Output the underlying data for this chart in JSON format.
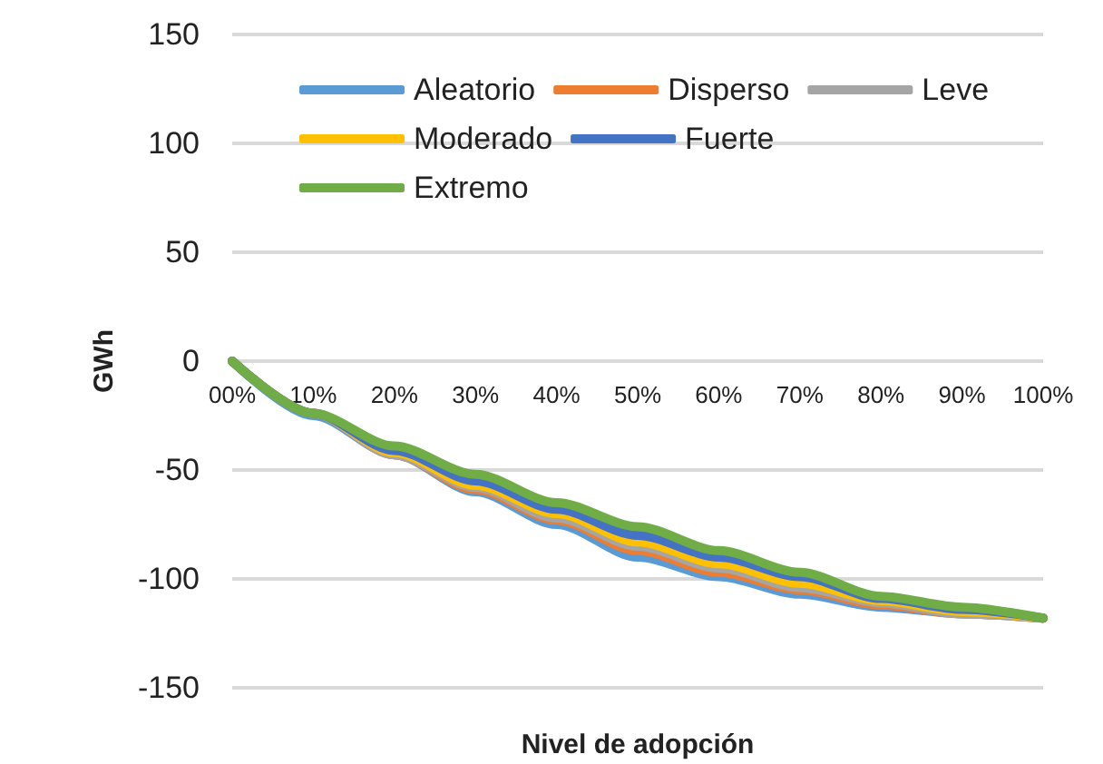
{
  "chart_data": {
    "type": "line",
    "xlabel": "Nivel de adopción",
    "ylabel": "GWh",
    "categories": [
      "00%",
      "10%",
      "20%",
      "30%",
      "40%",
      "50%",
      "60%",
      "70%",
      "80%",
      "90%",
      "100%"
    ],
    "series": [
      {
        "name": "Aleatorio",
        "color": "#5b9bd5",
        "values": [
          0,
          -25,
          -43,
          -60,
          -75,
          -90,
          -99,
          -107,
          -113,
          -116,
          -118
        ]
      },
      {
        "name": "Disperso",
        "color": "#ed7d31",
        "values": [
          0,
          -24,
          -43,
          -59,
          -73,
          -87,
          -97,
          -105,
          -112,
          -116,
          -118
        ]
      },
      {
        "name": "Leve",
        "color": "#a5a5a5",
        "values": [
          0,
          -24,
          -43,
          -58,
          -72,
          -85,
          -95,
          -104,
          -111,
          -116,
          -118
        ]
      },
      {
        "name": "Moderado",
        "color": "#ffc000",
        "values": [
          0,
          -24,
          -42,
          -57,
          -70,
          -83,
          -93,
          -102,
          -110,
          -115,
          -118
        ]
      },
      {
        "name": "Fuerte",
        "color": "#4472c4",
        "values": [
          0,
          -24,
          -41,
          -55,
          -68,
          -80,
          -90,
          -99,
          -109,
          -114,
          -118
        ]
      },
      {
        "name": "Extremo",
        "color": "#70ad47",
        "values": [
          0,
          -24,
          -39,
          -52,
          -65,
          -76,
          -87,
          -97,
          -108,
          -113,
          -118
        ]
      }
    ],
    "ylim": [
      -150,
      150
    ],
    "yticks": [
      -150,
      -100,
      -50,
      0,
      50,
      100,
      150
    ],
    "grid": "y",
    "legend": "top",
    "marker": "none",
    "line_style": "solid"
  }
}
